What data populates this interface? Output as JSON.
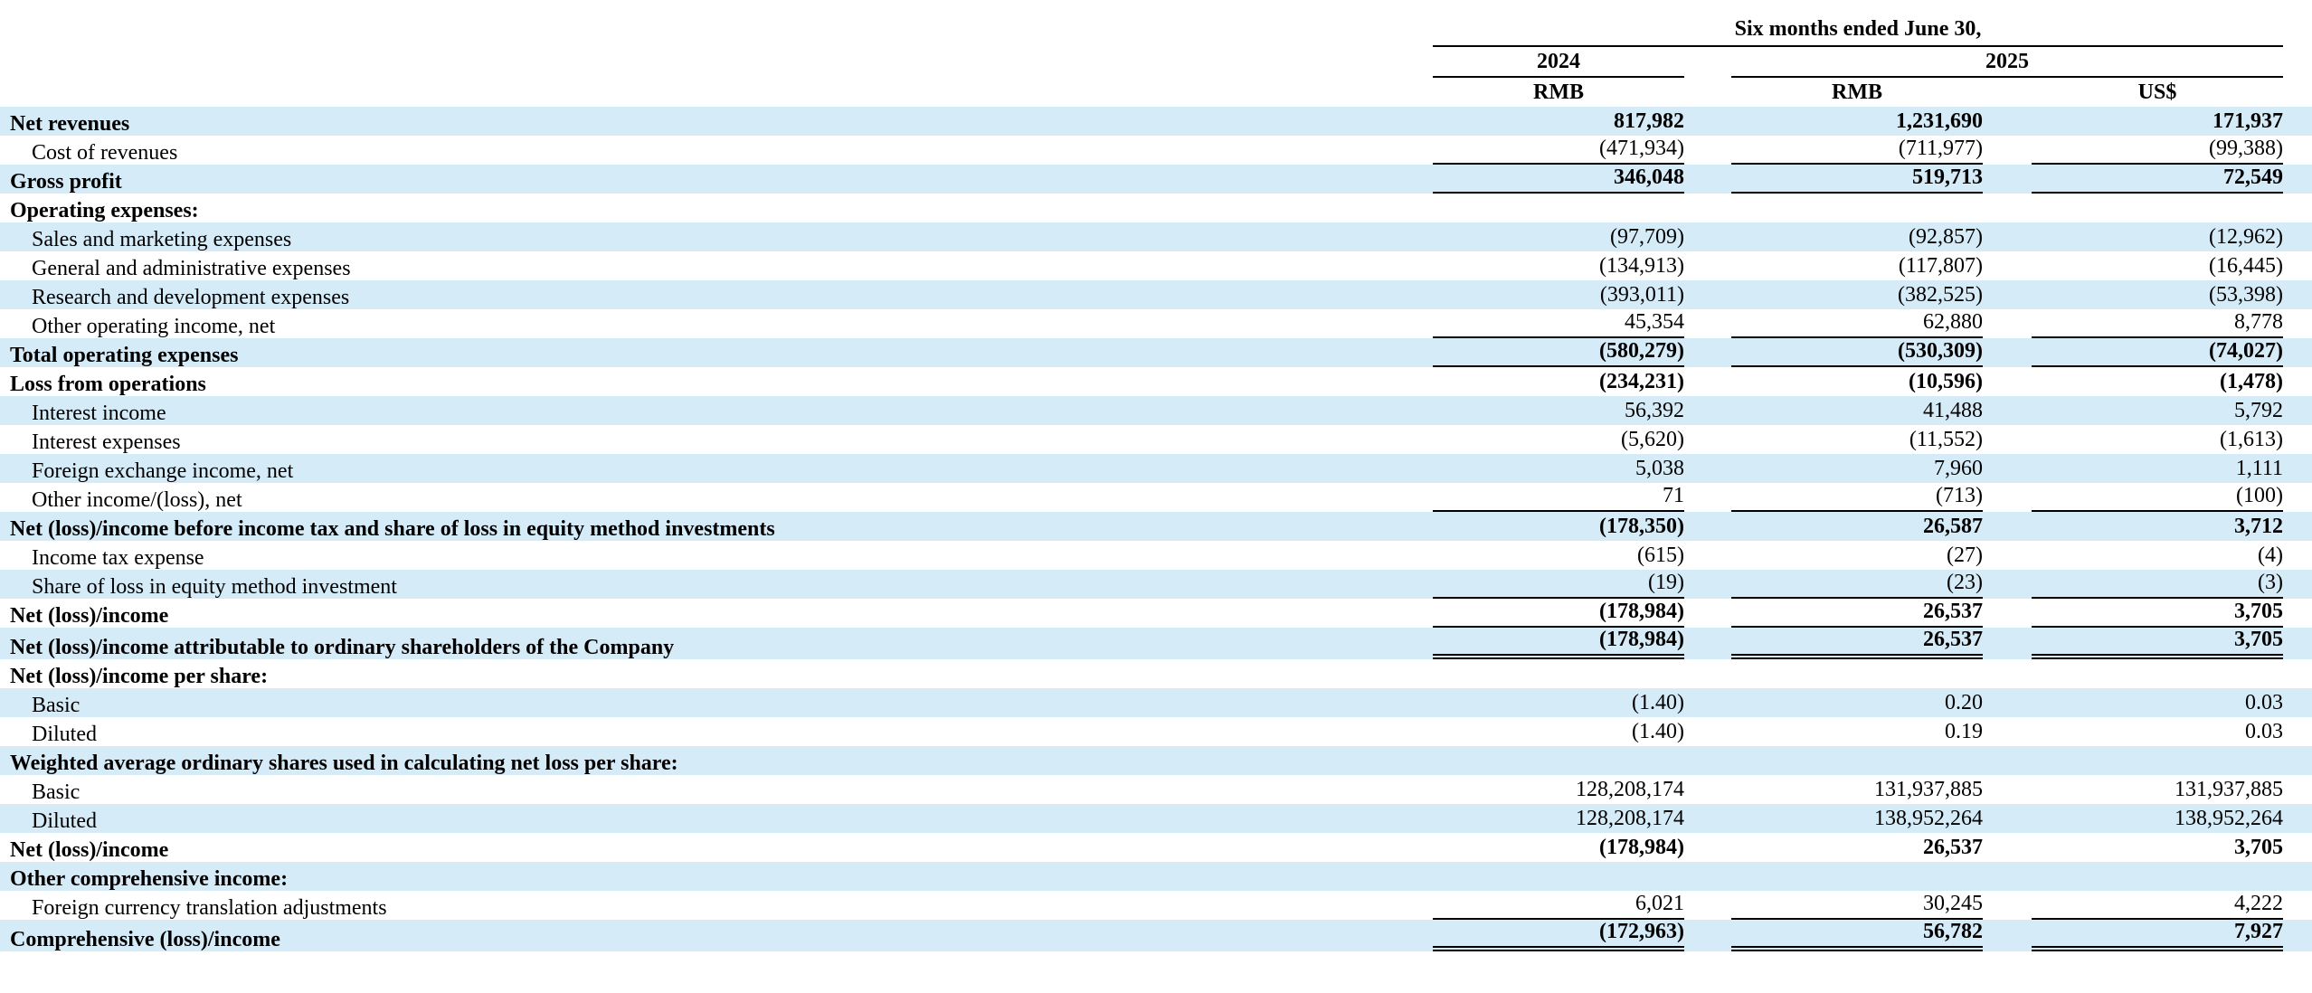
{
  "header": {
    "period": "Six months ended June 30,",
    "year_2024": "2024",
    "year_2025": "2025",
    "cur_2024": "RMB",
    "cur_2025_rmb": "RMB",
    "cur_2025_usd": "US$"
  },
  "rows": [
    {
      "label": "Net revenues",
      "v1": "817,982",
      "v2": "1,231,690",
      "v3": "171,937"
    },
    {
      "label": "Cost of revenues",
      "v1": "(471,934)",
      "v2": "(711,977)",
      "v3": "(99,388)"
    },
    {
      "label": "Gross profit",
      "v1": "346,048",
      "v2": "519,713",
      "v3": "72,549"
    },
    {
      "label": "Operating expenses:"
    },
    {
      "label": "Sales and marketing expenses",
      "v1": "(97,709)",
      "v2": "(92,857)",
      "v3": "(12,962)"
    },
    {
      "label": "General and administrative expenses",
      "v1": "(134,913)",
      "v2": "(117,807)",
      "v3": "(16,445)"
    },
    {
      "label": "Research and development expenses",
      "v1": "(393,011)",
      "v2": "(382,525)",
      "v3": "(53,398)"
    },
    {
      "label": "Other operating income, net",
      "v1": "45,354",
      "v2": "62,880",
      "v3": "8,778"
    },
    {
      "label": "Total operating expenses",
      "v1": "(580,279)",
      "v2": "(530,309)",
      "v3": "(74,027)"
    },
    {
      "label": "Loss from operations",
      "v1": "(234,231)",
      "v2": "(10,596)",
      "v3": "(1,478)"
    },
    {
      "label": "Interest income",
      "v1": "56,392",
      "v2": "41,488",
      "v3": "5,792"
    },
    {
      "label": "Interest expenses",
      "v1": "(5,620)",
      "v2": "(11,552)",
      "v3": "(1,613)"
    },
    {
      "label": "Foreign exchange income, net",
      "v1": "5,038",
      "v2": "7,960",
      "v3": "1,111"
    },
    {
      "label": "Other income/(loss), net",
      "v1": "71",
      "v2": "(713)",
      "v3": "(100)"
    },
    {
      "label": "Net (loss)/income before income tax and share of loss in equity method investments",
      "v1": "(178,350)",
      "v2": "26,587",
      "v3": "3,712"
    },
    {
      "label": "Income tax expense",
      "v1": "(615)",
      "v2": "(27)",
      "v3": "(4)"
    },
    {
      "label": "Share of loss in equity method investment",
      "v1": "(19)",
      "v2": "(23)",
      "v3": "(3)"
    },
    {
      "label": "Net (loss)/income",
      "v1": "(178,984)",
      "v2": "26,537",
      "v3": "3,705"
    },
    {
      "label": "Net (loss)/income attributable to ordinary shareholders of the Company",
      "v1": "(178,984)",
      "v2": "26,537",
      "v3": "3,705"
    },
    {
      "label": "Net (loss)/income per share:"
    },
    {
      "label": "Basic",
      "v1": "(1.40)",
      "v2": "0.20",
      "v3": "0.03"
    },
    {
      "label": "Diluted",
      "v1": "(1.40)",
      "v2": "0.19",
      "v3": "0.03"
    },
    {
      "label": "Weighted average ordinary shares used in calculating net loss per share:"
    },
    {
      "label": "Basic",
      "v1": "128,208,174",
      "v2": "131,937,885",
      "v3": "131,937,885"
    },
    {
      "label": "Diluted",
      "v1": "128,208,174",
      "v2": "138,952,264",
      "v3": "138,952,264"
    },
    {
      "label": "Net (loss)/income",
      "v1": "(178,984)",
      "v2": "26,537",
      "v3": "3,705"
    },
    {
      "label": "Other comprehensive income:"
    },
    {
      "label": "Foreign currency translation adjustments",
      "v1": "6,021",
      "v2": "30,245",
      "v3": "4,222"
    },
    {
      "label": "Comprehensive (loss)/income",
      "v1": "(172,963)",
      "v2": "56,782",
      "v3": "7,927"
    }
  ]
}
